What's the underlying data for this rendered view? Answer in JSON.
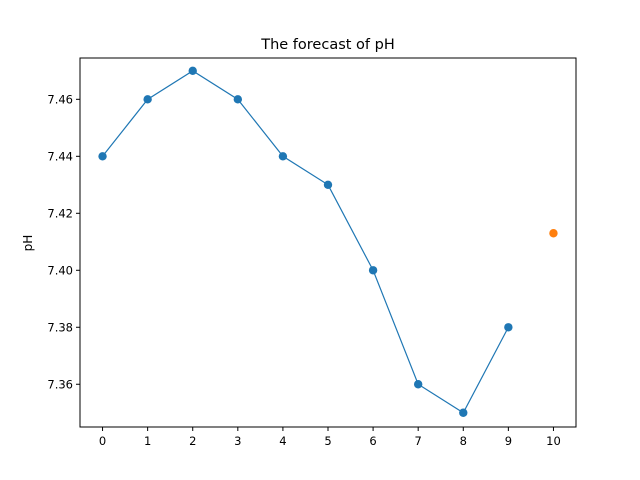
{
  "chart_data": {
    "type": "line",
    "title": "The forecast of pH",
    "xlabel": "",
    "ylabel": "pH",
    "xlim": [
      -0.5,
      10.5
    ],
    "ylim": [
      7.345,
      7.4745
    ],
    "xticks": [
      0,
      1,
      2,
      3,
      4,
      5,
      6,
      7,
      8,
      9,
      10
    ],
    "yticks": [
      7.36,
      7.38,
      7.4,
      7.42,
      7.44,
      7.46
    ],
    "ytick_labels": [
      "7.36",
      "7.38",
      "7.40",
      "7.42",
      "7.44",
      "7.46"
    ],
    "grid": false,
    "series": [
      {
        "color": "#1f77b4",
        "style": "line-with-markers",
        "x": [
          0,
          1,
          2,
          3,
          4,
          5,
          6,
          7,
          8,
          9
        ],
        "y": [
          7.44,
          7.46,
          7.47,
          7.46,
          7.44,
          7.43,
          7.4,
          7.36,
          7.35,
          7.38
        ]
      },
      {
        "color": "#ff7f0e",
        "style": "markers-only",
        "x": [
          10
        ],
        "y": [
          7.413
        ]
      }
    ]
  }
}
